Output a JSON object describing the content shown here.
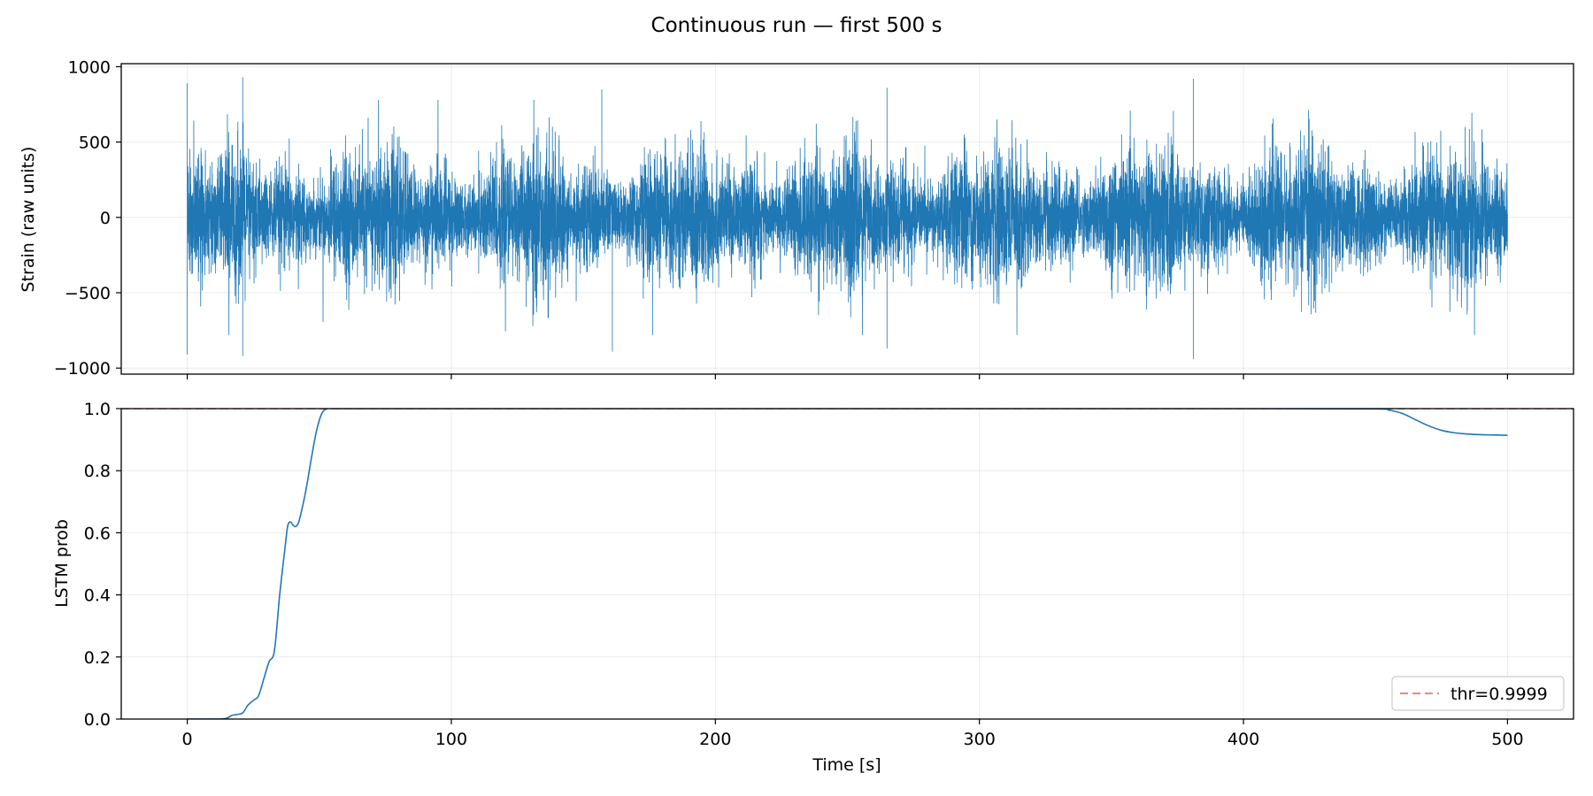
{
  "figure": {
    "title": "Continuous run — first 500 s"
  },
  "chart_data": [
    {
      "type": "line",
      "panel": "top",
      "title": "",
      "xlabel": "",
      "ylabel": "Strain (raw units)",
      "xlim": [
        -25,
        525
      ],
      "ylim": [
        -1040,
        1020
      ],
      "x_ticks": [
        0,
        100,
        200,
        300,
        400,
        500
      ],
      "y_ticks": [
        -1000,
        -500,
        0,
        500,
        1000
      ],
      "y_tick_labels": [
        "−1000",
        "−500",
        "0",
        "500",
        "1000"
      ],
      "grid": true,
      "color": "#1f77b4",
      "series": [
        {
          "x_range": [
            0,
            500
          ],
          "description_values": {
            "envelope_typical": [
              -400,
              400
            ],
            "peaks": [
              {
                "x": 0,
                "y": 890
              },
              {
                "x": 0,
                "y": -910
              },
              {
                "x": 21,
                "y": 930
              },
              {
                "x": 21,
                "y": -920
              },
              {
                "x": 157,
                "y": 850
              },
              {
                "x": 161,
                "y": -890
              },
              {
                "x": 265,
                "y": 860
              },
              {
                "x": 265,
                "y": -870
              },
              {
                "x": 381,
                "y": 920
              },
              {
                "x": 381,
                "y": -940
              }
            ]
          }
        }
      ]
    },
    {
      "type": "line",
      "panel": "bottom",
      "title": "",
      "xlabel": "Time [s]",
      "ylabel": "LSTM prob",
      "xlim": [
        -25,
        525
      ],
      "ylim": [
        0.0,
        1.0
      ],
      "x_ticks": [
        0,
        100,
        200,
        300,
        400,
        500
      ],
      "y_ticks": [
        0.0,
        0.2,
        0.4,
        0.6,
        0.8,
        1.0
      ],
      "y_tick_labels": [
        "0.0",
        "0.2",
        "0.4",
        "0.6",
        "0.8",
        "1.0"
      ],
      "grid": true,
      "legend": {
        "position": "lower-right",
        "entries": [
          "thr=0.9999"
        ]
      },
      "threshold": {
        "name": "thr=0.9999",
        "value": 0.9999,
        "color": "#e8413a",
        "style": "dashed"
      },
      "series": [
        {
          "color": "#1f77b4",
          "x": [
            0,
            12,
            15,
            17,
            19,
            21,
            23,
            25,
            27,
            29,
            31,
            33,
            35,
            37,
            38,
            39,
            40,
            41,
            42,
            43,
            45,
            47,
            49,
            51,
            53,
            55,
            60,
            100,
            200,
            300,
            400,
            450,
            455,
            460,
            465,
            470,
            475,
            480,
            485,
            490,
            495,
            500
          ],
          "y": [
            0.0,
            0.0,
            0.003,
            0.012,
            0.015,
            0.02,
            0.045,
            0.06,
            0.075,
            0.13,
            0.185,
            0.22,
            0.4,
            0.55,
            0.62,
            0.635,
            0.625,
            0.62,
            0.63,
            0.66,
            0.74,
            0.84,
            0.93,
            0.985,
            1.0,
            1.0,
            1.0,
            1.0,
            1.0,
            1.0,
            1.0,
            0.999,
            0.995,
            0.985,
            0.965,
            0.945,
            0.93,
            0.922,
            0.918,
            0.916,
            0.915,
            0.914
          ]
        }
      ]
    }
  ]
}
